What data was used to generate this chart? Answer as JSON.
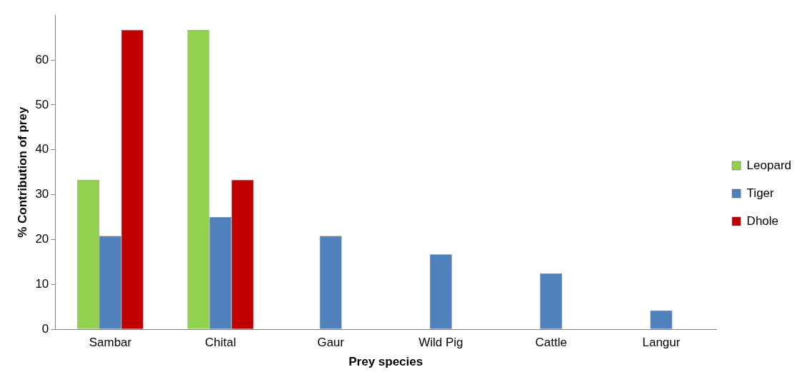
{
  "chart_data": {
    "type": "bar",
    "xlabel": "Prey species",
    "ylabel": "% Contribution of prey",
    "categories": [
      "Sambar",
      "Chital",
      "Gaur",
      "Wild Pig",
      "Cattle",
      "Langur"
    ],
    "series": [
      {
        "name": "Leopard",
        "color": "#92d050",
        "values": [
          33.3,
          66.7,
          null,
          null,
          null,
          null
        ]
      },
      {
        "name": "Tiger",
        "color": "#4f81bd",
        "values": [
          20.8,
          25,
          20.8,
          16.7,
          12.5,
          4.2
        ]
      },
      {
        "name": "Dhole",
        "color": "#c00000",
        "values": [
          66.7,
          33.3,
          null,
          null,
          null,
          null
        ]
      }
    ],
    "ylim": [
      0,
      70
    ],
    "yticks": [
      0,
      10,
      20,
      30,
      40,
      50,
      60
    ],
    "grid": false,
    "legend": "right"
  }
}
